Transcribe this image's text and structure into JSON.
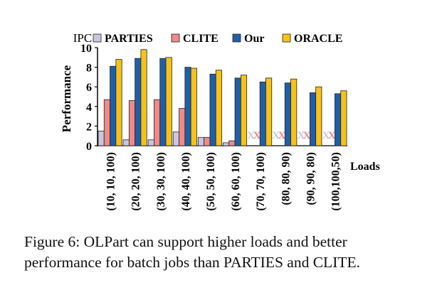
{
  "chart_data": {
    "type": "bar",
    "categories": [
      "(10, 10, 100)",
      "(20, 20, 100)",
      "(30, 30, 100)",
      "(40, 40, 100)",
      "(50, 50, 100)",
      "(60, 60, 100)",
      "(70, 70, 100)",
      "(80, 80, 90)",
      "(90, 90, 80)",
      "(100,100,50)"
    ],
    "series": [
      {
        "name": "PARTIES",
        "color": "#c8c6e0",
        "values": [
          1.5,
          0.6,
          0.6,
          1.4,
          0.85,
          0.3,
          null,
          null,
          null,
          null
        ]
      },
      {
        "name": "CLITE",
        "color": "#f08a86",
        "values": [
          4.7,
          4.6,
          4.7,
          3.8,
          0.85,
          0.5,
          null,
          null,
          null,
          null
        ]
      },
      {
        "name": "Our",
        "color": "#1f5fa8",
        "values": [
          8.1,
          8.9,
          8.9,
          8.0,
          7.3,
          6.9,
          6.5,
          6.4,
          5.4,
          5.3
        ]
      },
      {
        "name": "ORACLE",
        "color": "#f6c21a",
        "values": [
          8.8,
          9.8,
          9.0,
          7.9,
          7.7,
          7.2,
          6.9,
          6.8,
          6.0,
          5.6
        ]
      }
    ],
    "failed_marker": "X",
    "ylabel": "Performance",
    "yunit": "IPC",
    "xlabel": "Loads",
    "ylim": [
      0,
      10
    ],
    "yticks": [
      0,
      2,
      4,
      6,
      8,
      10
    ],
    "grid": false,
    "legend_position": "top"
  },
  "caption": "Figure 6: OLPart can support higher loads and better performance for batch jobs than PARTIES and CLITE."
}
